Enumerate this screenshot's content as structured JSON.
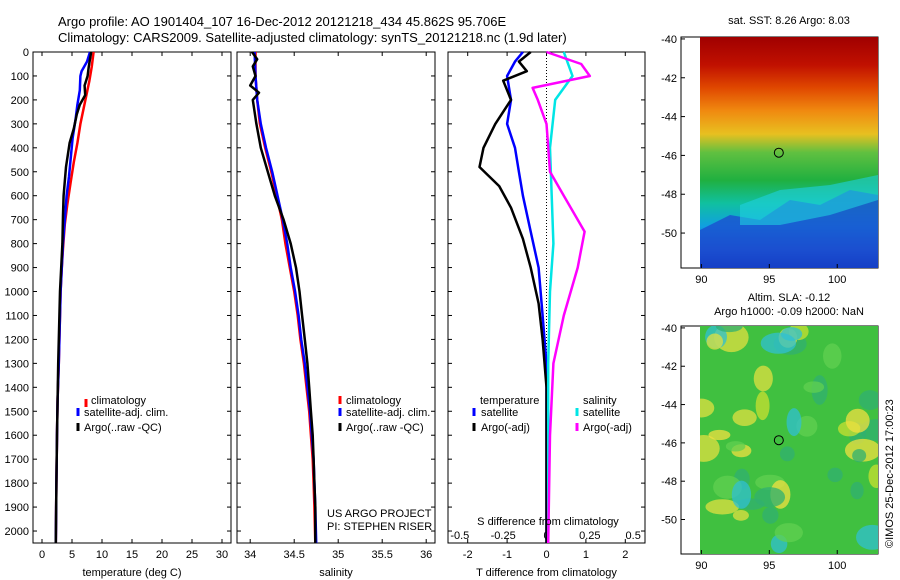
{
  "header": {
    "line1": "Argo profile: AO 1901404_107 16-Dec-2012 20121218_434 45.862S 95.706E",
    "line2": "Climatology: CARS2009. Satellite-adjusted climatology: synTS_20121218.nc (1.9d later)"
  },
  "depth_ticks": [
    "0",
    "100",
    "200",
    "300",
    "400",
    "500",
    "600",
    "700",
    "800",
    "900",
    "1000",
    "1100",
    "1200",
    "1300",
    "1400",
    "1500",
    "1600",
    "1700",
    "1800",
    "1900",
    "2000"
  ],
  "colors": {
    "climatology": "#ff0000",
    "satellite": "#0000ff",
    "argo": "#000000",
    "cyan": "#00e5e5",
    "magenta": "#ff00ff"
  },
  "chart_data": [
    {
      "type": "line",
      "xlabel": "temperature (deg C)",
      "x_ticks": [
        "0",
        "5",
        "10",
        "15",
        "20",
        "25",
        "30"
      ],
      "xlim": [
        -1.5,
        31.5
      ],
      "ylim": [
        2050,
        0
      ],
      "legend": [
        "climatology",
        "satellite-adj. clim.",
        "Argo(..raw -QC)"
      ],
      "series": [
        {
          "name": "climatology",
          "color": "#ff0000",
          "points": [
            [
              8.6,
              0
            ],
            [
              8.3,
              60
            ],
            [
              7.9,
              120
            ],
            [
              7.4,
              180
            ],
            [
              6.9,
              240
            ],
            [
              6.4,
              300
            ],
            [
              5.9,
              380
            ],
            [
              5.3,
              460
            ],
            [
              4.8,
              540
            ],
            [
              4.2,
              640
            ],
            [
              3.8,
              720
            ],
            [
              3.5,
              820
            ],
            [
              3.3,
              900
            ],
            [
              3.1,
              1000
            ],
            [
              3.0,
              1100
            ],
            [
              2.9,
              1200
            ],
            [
              2.8,
              1300
            ],
            [
              2.6,
              1450
            ],
            [
              2.5,
              1600
            ],
            [
              2.4,
              1800
            ],
            [
              2.3,
              2050
            ]
          ]
        },
        {
          "name": "satellite-adj. clim.",
          "color": "#0000ff",
          "points": [
            [
              8.0,
              0
            ],
            [
              7.5,
              40
            ],
            [
              6.6,
              80
            ],
            [
              6.4,
              100
            ],
            [
              6.3,
              160
            ],
            [
              5.9,
              220
            ],
            [
              5.6,
              280
            ],
            [
              5.1,
              360
            ],
            [
              4.8,
              440
            ],
            [
              4.5,
              520
            ],
            [
              4.1,
              600
            ],
            [
              3.8,
              700
            ],
            [
              3.5,
              800
            ],
            [
              3.3,
              900
            ],
            [
              3.1,
              1000
            ],
            [
              3.0,
              1100
            ],
            [
              2.9,
              1200
            ],
            [
              2.8,
              1300
            ],
            [
              2.6,
              1450
            ],
            [
              2.5,
              1600
            ],
            [
              2.4,
              1800
            ],
            [
              2.3,
              2050
            ]
          ]
        },
        {
          "name": "Argo(..raw -QC)",
          "color": "#000000",
          "points": [
            [
              8.2,
              0
            ],
            [
              8.0,
              30
            ],
            [
              7.8,
              60
            ],
            [
              7.6,
              100
            ],
            [
              7.1,
              140
            ],
            [
              7.2,
              180
            ],
            [
              6.3,
              220
            ],
            [
              5.8,
              260
            ],
            [
              5.3,
              320
            ],
            [
              4.6,
              380
            ],
            [
              4.3,
              430
            ],
            [
              4.0,
              480
            ],
            [
              3.8,
              540
            ],
            [
              3.6,
              600
            ],
            [
              3.5,
              680
            ],
            [
              3.4,
              800
            ],
            [
              3.2,
              900
            ],
            [
              3.0,
              1000
            ],
            [
              2.9,
              1100
            ],
            [
              2.8,
              1200
            ],
            [
              2.7,
              1300
            ],
            [
              2.6,
              1450
            ],
            [
              2.5,
              1600
            ],
            [
              2.4,
              1800
            ],
            [
              2.3,
              2050
            ]
          ]
        }
      ]
    },
    {
      "type": "line",
      "xlabel": "salinity",
      "x_ticks": [
        "34",
        "34.5",
        "35",
        "35.5",
        "36"
      ],
      "xlim": [
        33.85,
        36.1
      ],
      "ylim": [
        2050,
        0
      ],
      "legend": [
        "climatology",
        "satellite-adj. clim.",
        "Argo(..raw -QC)"
      ],
      "annotation": [
        "US ARGO PROJECT",
        "PI: STEPHEN RISER"
      ],
      "series": [
        {
          "name": "climatology",
          "color": "#ff0000",
          "points": [
            [
              34.06,
              0
            ],
            [
              34.06,
              100
            ],
            [
              34.08,
              200
            ],
            [
              34.11,
              300
            ],
            [
              34.17,
              400
            ],
            [
              34.24,
              500
            ],
            [
              34.3,
              600
            ],
            [
              34.36,
              700
            ],
            [
              34.4,
              800
            ],
            [
              34.45,
              900
            ],
            [
              34.5,
              1000
            ],
            [
              34.54,
              1100
            ],
            [
              34.57,
              1200
            ],
            [
              34.61,
              1300
            ],
            [
              34.64,
              1400
            ],
            [
              34.67,
              1500
            ],
            [
              34.69,
              1600
            ],
            [
              34.71,
              1700
            ],
            [
              34.72,
              1800
            ],
            [
              34.73,
              1900
            ],
            [
              34.74,
              2050
            ]
          ]
        },
        {
          "name": "satellite-adj. clim.",
          "color": "#0000ff",
          "points": [
            [
              34.05,
              0
            ],
            [
              34.06,
              100
            ],
            [
              34.08,
              200
            ],
            [
              34.12,
              300
            ],
            [
              34.18,
              400
            ],
            [
              34.25,
              500
            ],
            [
              34.31,
              600
            ],
            [
              34.37,
              700
            ],
            [
              34.42,
              800
            ],
            [
              34.46,
              900
            ],
            [
              34.51,
              1000
            ],
            [
              34.55,
              1100
            ],
            [
              34.58,
              1200
            ],
            [
              34.62,
              1300
            ],
            [
              34.65,
              1400
            ],
            [
              34.68,
              1500
            ],
            [
              34.7,
              1600
            ],
            [
              34.72,
              1700
            ],
            [
              34.73,
              1800
            ],
            [
              34.74,
              1900
            ],
            [
              34.75,
              2050
            ]
          ]
        },
        {
          "name": "Argo(..raw -QC)",
          "color": "#000000",
          "points": [
            [
              34.02,
              0
            ],
            [
              34.08,
              30
            ],
            [
              34.03,
              60
            ],
            [
              34.06,
              100
            ],
            [
              34.0,
              140
            ],
            [
              34.1,
              170
            ],
            [
              34.03,
              200
            ],
            [
              34.07,
              300
            ],
            [
              34.12,
              400
            ],
            [
              34.2,
              500
            ],
            [
              34.28,
              600
            ],
            [
              34.38,
              700
            ],
            [
              34.46,
              800
            ],
            [
              34.52,
              900
            ],
            [
              34.56,
              1000
            ],
            [
              34.59,
              1100
            ],
            [
              34.62,
              1200
            ],
            [
              34.65,
              1300
            ],
            [
              34.67,
              1400
            ],
            [
              34.69,
              1500
            ],
            [
              34.71,
              1600
            ],
            [
              34.72,
              1700
            ],
            [
              34.73,
              1800
            ],
            [
              34.74,
              1900
            ],
            [
              34.74,
              2050
            ]
          ]
        }
      ]
    },
    {
      "type": "line",
      "xlabel": "T difference from climatology",
      "x_ticks": [
        "-2",
        "-1",
        "0",
        "1",
        "2"
      ],
      "xlim": [
        -2.5,
        2.5
      ],
      "top_label": "S difference from climatology",
      "top_ticks": [
        "-0.5",
        "-0.25",
        "0",
        "0.25",
        "0.5"
      ],
      "ylim": [
        2050,
        0
      ],
      "legend_temperature_title": "temperature",
      "legend_salinity_title": "salinity",
      "legend": [
        "satellite",
        "Argo(-adj)",
        "satellite",
        "Argo(-adj)"
      ],
      "series": [
        {
          "name": "satellite",
          "color": "#0000ff",
          "points": [
            [
              -0.6,
              0
            ],
            [
              -0.8,
              40
            ],
            [
              -1.0,
              100
            ],
            [
              -0.9,
              200
            ],
            [
              -1.0,
              300
            ],
            [
              -0.8,
              400
            ],
            [
              -0.7,
              500
            ],
            [
              -0.6,
              600
            ],
            [
              -0.4,
              750
            ],
            [
              -0.2,
              900
            ],
            [
              -0.1,
              1100
            ],
            [
              0,
              1300
            ],
            [
              0,
              1600
            ],
            [
              0,
              2050
            ]
          ]
        },
        {
          "name": "Argo(-adj)",
          "color": "#000000",
          "points": [
            [
              -0.4,
              0
            ],
            [
              -0.7,
              40
            ],
            [
              -0.5,
              80
            ],
            [
              -1.1,
              120
            ],
            [
              -0.9,
              200
            ],
            [
              -1.3,
              300
            ],
            [
              -1.6,
              400
            ],
            [
              -1.7,
              480
            ],
            [
              -1.2,
              560
            ],
            [
              -0.9,
              650
            ],
            [
              -0.6,
              780
            ],
            [
              -0.4,
              900
            ],
            [
              -0.2,
              1050
            ],
            [
              -0.1,
              1200
            ],
            [
              0,
              1400
            ],
            [
              0,
              1700
            ],
            [
              0,
              2050
            ]
          ]
        },
        {
          "name": "satellite",
          "color": "#00e5e5",
          "points": [
            [
              0.1,
              0
            ],
            [
              0.15,
              100
            ],
            [
              0.05,
              200
            ],
            [
              0.02,
              400
            ],
            [
              0.03,
              600
            ],
            [
              0.04,
              800
            ],
            [
              0.02,
              1000
            ],
            [
              0.01,
              1300
            ],
            [
              0.01,
              1600
            ],
            [
              0.01,
              2050
            ]
          ]
        },
        {
          "name": "Argo(-adj)",
          "color": "#ff00ff",
          "points": [
            [
              0.0,
              0
            ],
            [
              0.2,
              50
            ],
            [
              0.25,
              100
            ],
            [
              -0.08,
              150
            ],
            [
              -0.05,
              200
            ],
            [
              0.0,
              300
            ],
            [
              0.02,
              500
            ],
            [
              0.1,
              600
            ],
            [
              0.22,
              750
            ],
            [
              0.18,
              900
            ],
            [
              0.1,
              1100
            ],
            [
              0.04,
              1300
            ],
            [
              0.02,
              1600
            ],
            [
              0.01,
              2050
            ]
          ]
        }
      ]
    }
  ],
  "maps": [
    {
      "title": "sat. SST: 8.26 Argo: 8.03",
      "y_ticks": [
        "-40",
        "-42",
        "-44",
        "-46",
        "-48",
        "-50"
      ],
      "x_ticks": [
        "90",
        "95",
        "100"
      ],
      "marker": [
        95.7,
        -45.86
      ]
    },
    {
      "title_line1": "Altim. SLA: -0.12",
      "title_line2": "Argo h1000: -0.09 h2000: NaN",
      "y_ticks": [
        "-40",
        "-42",
        "-44",
        "-46",
        "-48",
        "-50"
      ],
      "x_ticks": [
        "90",
        "95",
        "100"
      ],
      "marker": [
        95.7,
        -45.86
      ]
    }
  ],
  "watermark": "©IMOS 25-Dec-2012 17:00:23"
}
